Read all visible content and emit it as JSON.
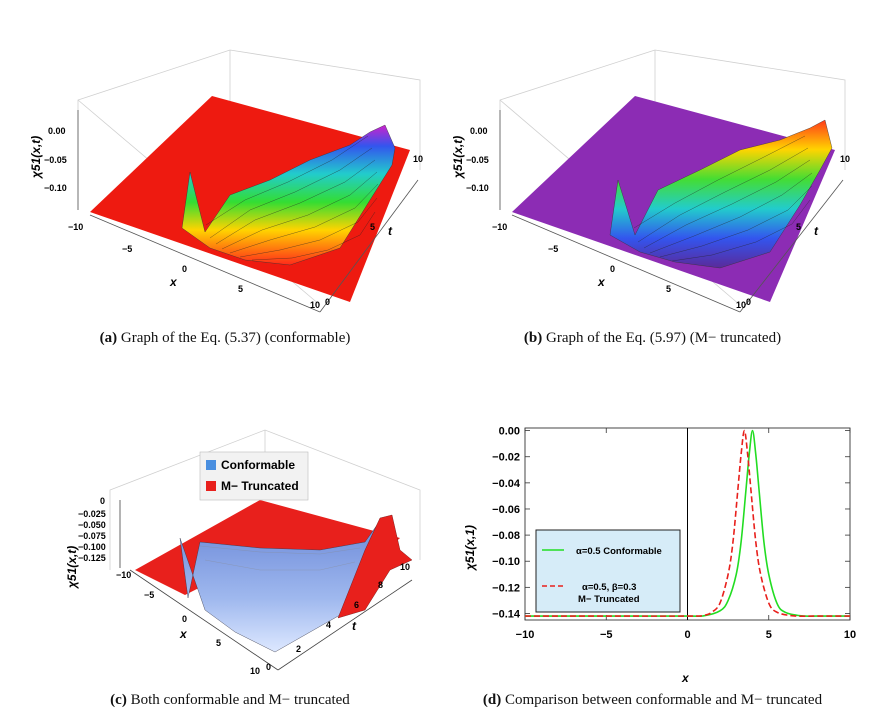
{
  "panel_a": {
    "caption_tag": "(a)",
    "caption_text": "Graph of the Eq. (5.37) (conformable)",
    "zlabel": "χ51(x,t)",
    "xlabel": "x",
    "tlabel": "t",
    "z_ticks": [
      "0.00",
      "−0.05",
      "−0.10"
    ],
    "x_ticks": [
      "−10",
      "−5",
      "0",
      "5",
      "10"
    ],
    "t_ticks": [
      "0",
      "5",
      "10"
    ]
  },
  "panel_b": {
    "caption_tag": "(b)",
    "caption_text": "Graph of the Eq. (5.97) (M− truncated)",
    "zlabel": "χ51(x,t)",
    "xlabel": "x",
    "tlabel": "t",
    "z_ticks": [
      "0.00",
      "−0.05",
      "−0.10"
    ],
    "x_ticks": [
      "−10",
      "−5",
      "0",
      "5",
      "10"
    ],
    "t_ticks": [
      "0",
      "5",
      "10"
    ]
  },
  "panel_c": {
    "caption_tag": "(c)",
    "caption_text": "Both conformable and M− truncated",
    "zlabel": "χ51(x,t)",
    "xlabel": "x",
    "tlabel": "t",
    "z_ticks": [
      "0",
      "−0.025",
      "−0.050",
      "−0.075",
      "−0.100",
      "−0.125"
    ],
    "x_ticks": [
      "−10",
      "−5",
      "0",
      "5",
      "10"
    ],
    "t_ticks": [
      "0",
      "2",
      "4",
      "6",
      "8",
      "10"
    ],
    "legend": [
      {
        "label": "Conformable",
        "color": "#4a8fe0"
      },
      {
        "label": "M− Truncated",
        "color": "#e8201c"
      }
    ]
  },
  "panel_d": {
    "caption_tag": "(d)",
    "caption_text": "Comparison between conformable and M− truncated",
    "legend": [
      {
        "label": "α=0.5 Conformable"
      },
      {
        "label": "α=0.5, β=0.3",
        "label2": "M− Truncated"
      }
    ]
  },
  "chart_data": [
    {
      "type": "line",
      "title": "",
      "xlabel": "x",
      "ylabel": "χ51(x,1)",
      "xlim": [
        -10,
        10
      ],
      "ylim": [
        -0.145,
        0.002
      ],
      "x_ticks": [
        -10,
        -5,
        0,
        5,
        10
      ],
      "y_ticks": [
        0.0,
        -0.02,
        -0.04,
        -0.06,
        -0.08,
        -0.1,
        -0.12,
        -0.14
      ],
      "x_tick_labels": [
        "−10",
        "−5",
        "0",
        "5",
        "10"
      ],
      "y_tick_labels": [
        "0.00",
        "−0.02",
        "−0.04",
        "−0.06",
        "−0.08",
        "−0.10",
        "−0.12",
        "−0.14"
      ],
      "series": [
        {
          "name": "α=0.5 Conformable",
          "color": "#22dd22",
          "dash": "solid",
          "x": [
            -10,
            -5,
            0,
            1,
            2,
            2.5,
            3,
            3.3,
            3.6,
            3.8,
            4.0,
            4.2,
            4.4,
            4.7,
            5.0,
            5.5,
            6,
            7,
            8,
            10
          ],
          "values": [
            -0.142,
            -0.142,
            -0.142,
            -0.1418,
            -0.138,
            -0.13,
            -0.11,
            -0.085,
            -0.045,
            -0.018,
            0.0,
            -0.018,
            -0.045,
            -0.085,
            -0.11,
            -0.132,
            -0.139,
            -0.1418,
            -0.142,
            -0.142
          ]
        },
        {
          "name": "α=0.5, β=0.3 M− Truncated",
          "color": "#e8201c",
          "dash": "dashed",
          "x": [
            -10,
            -5,
            0,
            1,
            1.5,
            2,
            2.5,
            2.8,
            3.1,
            3.3,
            3.5,
            3.7,
            3.9,
            4.2,
            4.5,
            5.0,
            5.5,
            6.5,
            8,
            10
          ],
          "values": [
            -0.142,
            -0.142,
            -0.142,
            -0.1415,
            -0.139,
            -0.132,
            -0.11,
            -0.085,
            -0.045,
            -0.018,
            0.0,
            -0.018,
            -0.045,
            -0.085,
            -0.11,
            -0.132,
            -0.139,
            -0.1418,
            -0.142,
            -0.142
          ]
        }
      ]
    }
  ]
}
